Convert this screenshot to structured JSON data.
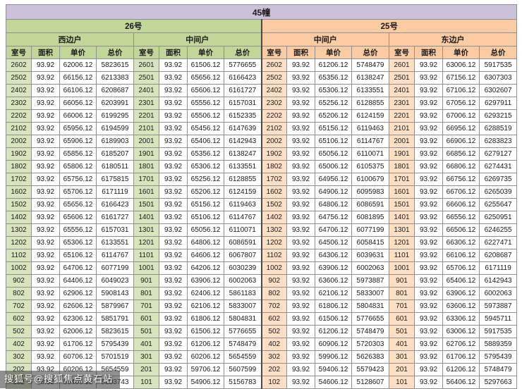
{
  "title": "45幢",
  "watermark": "搜狐号@搜狐焦点黄石站",
  "colors": {
    "title_bg": "#ccc1da",
    "green_header": "#c2d69a",
    "green_cell": "#d8e4bd",
    "peach_header": "#fbcba4",
    "peach_cell": "#fcdfc4",
    "grid_line": "#8f8f8f",
    "section_divider": "#4a4a4a",
    "watermark_bg": "rgba(70,70,70,0.6)",
    "watermark_text": "#ffffff"
  },
  "sections": [
    {
      "label": "26号",
      "units": [
        "西边户",
        "中间户"
      ]
    },
    {
      "label": "25号",
      "units": [
        "中间户",
        "东边户"
      ]
    }
  ],
  "column_headers": [
    "室号",
    "面积",
    "单价",
    "总价"
  ],
  "rows": [
    [
      "2602",
      "93.92",
      "62006.12",
      "5823615",
      "2601",
      "93.92",
      "61506.12",
      "5776655",
      "2602",
      "93.92",
      "61206.12",
      "5748479",
      "2601",
      "93.92",
      "63006.12",
      "5917535"
    ],
    [
      "2502",
      "93.92",
      "66156.12",
      "6213383",
      "2501",
      "93.92",
      "65656.12",
      "6166423",
      "2502",
      "93.92",
      "65356.12",
      "6138247",
      "2501",
      "93.92",
      "67156.12",
      "6307303"
    ],
    [
      "2402",
      "93.92",
      "66106.12",
      "6208687",
      "2401",
      "93.92",
      "65606.12",
      "6161727",
      "2402",
      "93.92",
      "65306.12",
      "6133551",
      "2401",
      "93.92",
      "67106.12",
      "6302607"
    ],
    [
      "2302",
      "93.92",
      "66056.12",
      "6203991",
      "2301",
      "93.92",
      "65556.12",
      "6157031",
      "2302",
      "93.92",
      "65256.12",
      "6128855",
      "2301",
      "93.92",
      "67056.12",
      "6297911"
    ],
    [
      "2202",
      "93.92",
      "66006.12",
      "6199295",
      "2201",
      "93.92",
      "65506.12",
      "6152335",
      "2202",
      "93.92",
      "65206.12",
      "6124159",
      "2201",
      "93.92",
      "67006.12",
      "6293215"
    ],
    [
      "2102",
      "93.92",
      "65956.12",
      "6194599",
      "2101",
      "93.92",
      "65456.12",
      "6147639",
      "2102",
      "93.92",
      "65156.12",
      "6119463",
      "2101",
      "93.92",
      "66956.12",
      "6288519"
    ],
    [
      "2002",
      "93.92",
      "65906.12",
      "6189903",
      "2001",
      "93.92",
      "65406.12",
      "6142943",
      "2002",
      "93.92",
      "65106.12",
      "6114767",
      "2001",
      "93.92",
      "66906.12",
      "6283823"
    ],
    [
      "1902",
      "93.92",
      "65856.12",
      "6185207",
      "1901",
      "93.92",
      "65356.12",
      "6138247",
      "1902",
      "93.92",
      "65056.12",
      "6110071",
      "1901",
      "93.92",
      "66856.12",
      "6279127"
    ],
    [
      "1802",
      "93.92",
      "65806.12",
      "6180511",
      "1801",
      "93.92",
      "65306.12",
      "6133551",
      "1802",
      "93.92",
      "65006.12",
      "6105375",
      "1801",
      "93.92",
      "66806.12",
      "6274431"
    ],
    [
      "1702",
      "93.92",
      "65756.12",
      "6175815",
      "1701",
      "93.92",
      "65256.12",
      "6128855",
      "1702",
      "93.92",
      "64956.12",
      "6100679",
      "1701",
      "93.92",
      "66756.12",
      "6269735"
    ],
    [
      "1602",
      "93.92",
      "65706.12",
      "6171119",
      "1601",
      "93.92",
      "65206.12",
      "6124159",
      "1602",
      "93.92",
      "64906.12",
      "6095983",
      "1601",
      "93.92",
      "66706.12",
      "6265039"
    ],
    [
      "1502",
      "93.92",
      "65656.12",
      "6166423",
      "1501",
      "93.92",
      "65156.12",
      "6119463",
      "1502",
      "93.92",
      "64806.12",
      "6086591",
      "1501",
      "93.92",
      "66606.12",
      "6255647"
    ],
    [
      "1402",
      "93.92",
      "65606.12",
      "6161727",
      "1401",
      "93.92",
      "65106.12",
      "6114767",
      "1402",
      "93.92",
      "64756.12",
      "6081895",
      "1401",
      "93.92",
      "66556.12",
      "6250951"
    ],
    [
      "1302",
      "93.92",
      "65556.12",
      "6157031",
      "1301",
      "93.92",
      "65056.12",
      "6110071",
      "1302",
      "93.92",
      "64706.12",
      "6077199",
      "1301",
      "93.92",
      "66506.12",
      "6246255"
    ],
    [
      "1202",
      "93.92",
      "65306.12",
      "6133551",
      "1201",
      "93.92",
      "64806.12",
      "6086591",
      "1202",
      "93.92",
      "64506.12",
      "6058415",
      "1201",
      "93.92",
      "66306.12",
      "6227471"
    ],
    [
      "1102",
      "93.92",
      "65106.12",
      "6114767",
      "1101",
      "93.92",
      "64606.12",
      "6067807",
      "1102",
      "93.92",
      "64306.12",
      "6039631",
      "1101",
      "93.92",
      "66106.12",
      "6208687"
    ],
    [
      "1002",
      "93.92",
      "64706.12",
      "6077199",
      "1001",
      "93.92",
      "64206.12",
      "6030239",
      "1002",
      "93.92",
      "63906.12",
      "6002063",
      "1001",
      "93.92",
      "65706.12",
      "6171119"
    ],
    [
      "902",
      "93.92",
      "64406.12",
      "6049023",
      "901",
      "93.92",
      "63906.12",
      "6002063",
      "902",
      "93.92",
      "63606.12",
      "5973887",
      "901",
      "93.92",
      "65406.12",
      "6142943"
    ],
    [
      "802",
      "93.92",
      "62906.12",
      "5908143",
      "801",
      "93.92",
      "62406.12",
      "5861183",
      "802",
      "93.92",
      "62106.12",
      "5833007",
      "801",
      "93.92",
      "63906.12",
      "6002063"
    ],
    [
      "702",
      "93.92",
      "62606.12",
      "5879967",
      "701",
      "93.92",
      "62106.12",
      "5833007",
      "702",
      "93.92",
      "61806.12",
      "5804831",
      "701",
      "93.92",
      "63606.12",
      "5973887"
    ],
    [
      "602",
      "93.92",
      "62306.12",
      "5851791",
      "601",
      "93.92",
      "61806.12",
      "5804831",
      "602",
      "93.92",
      "61506.12",
      "5776655",
      "601",
      "93.92",
      "63306.12",
      "5945711"
    ],
    [
      "502",
      "93.92",
      "62006.12",
      "5823615",
      "501",
      "93.92",
      "61506.12",
      "5776655",
      "502",
      "93.92",
      "61206.12",
      "5748479",
      "501",
      "93.92",
      "63006.12",
      "5917535"
    ],
    [
      "402",
      "93.92",
      "61706.12",
      "5795439",
      "401",
      "93.92",
      "61206.12",
      "5748479",
      "402",
      "93.92",
      "60906.12",
      "5720303",
      "401",
      "93.92",
      "62706.12",
      "5889359"
    ],
    [
      "302",
      "93.92",
      "60706.12",
      "5701519",
      "301",
      "93.92",
      "60206.12",
      "5654559",
      "302",
      "93.92",
      "59906.12",
      "5626383",
      "301",
      "93.92",
      "61706.12",
      "5795439"
    ],
    [
      "202",
      "93.92",
      "60206.12",
      "5654559",
      "201",
      "93.92",
      "59706.12",
      "5607599",
      "202",
      "93.92",
      "59406.12",
      "5579423",
      "201",
      "93.92",
      "61206.12",
      "5748479"
    ],
    [
      "102",
      "93.92",
      "55406.12",
      "5203743",
      "101",
      "93.92",
      "54906.12",
      "5156783",
      "102",
      "93.92",
      "54606.12",
      "5128607",
      "101",
      "93.92",
      "56406.12",
      "5297663"
    ]
  ]
}
